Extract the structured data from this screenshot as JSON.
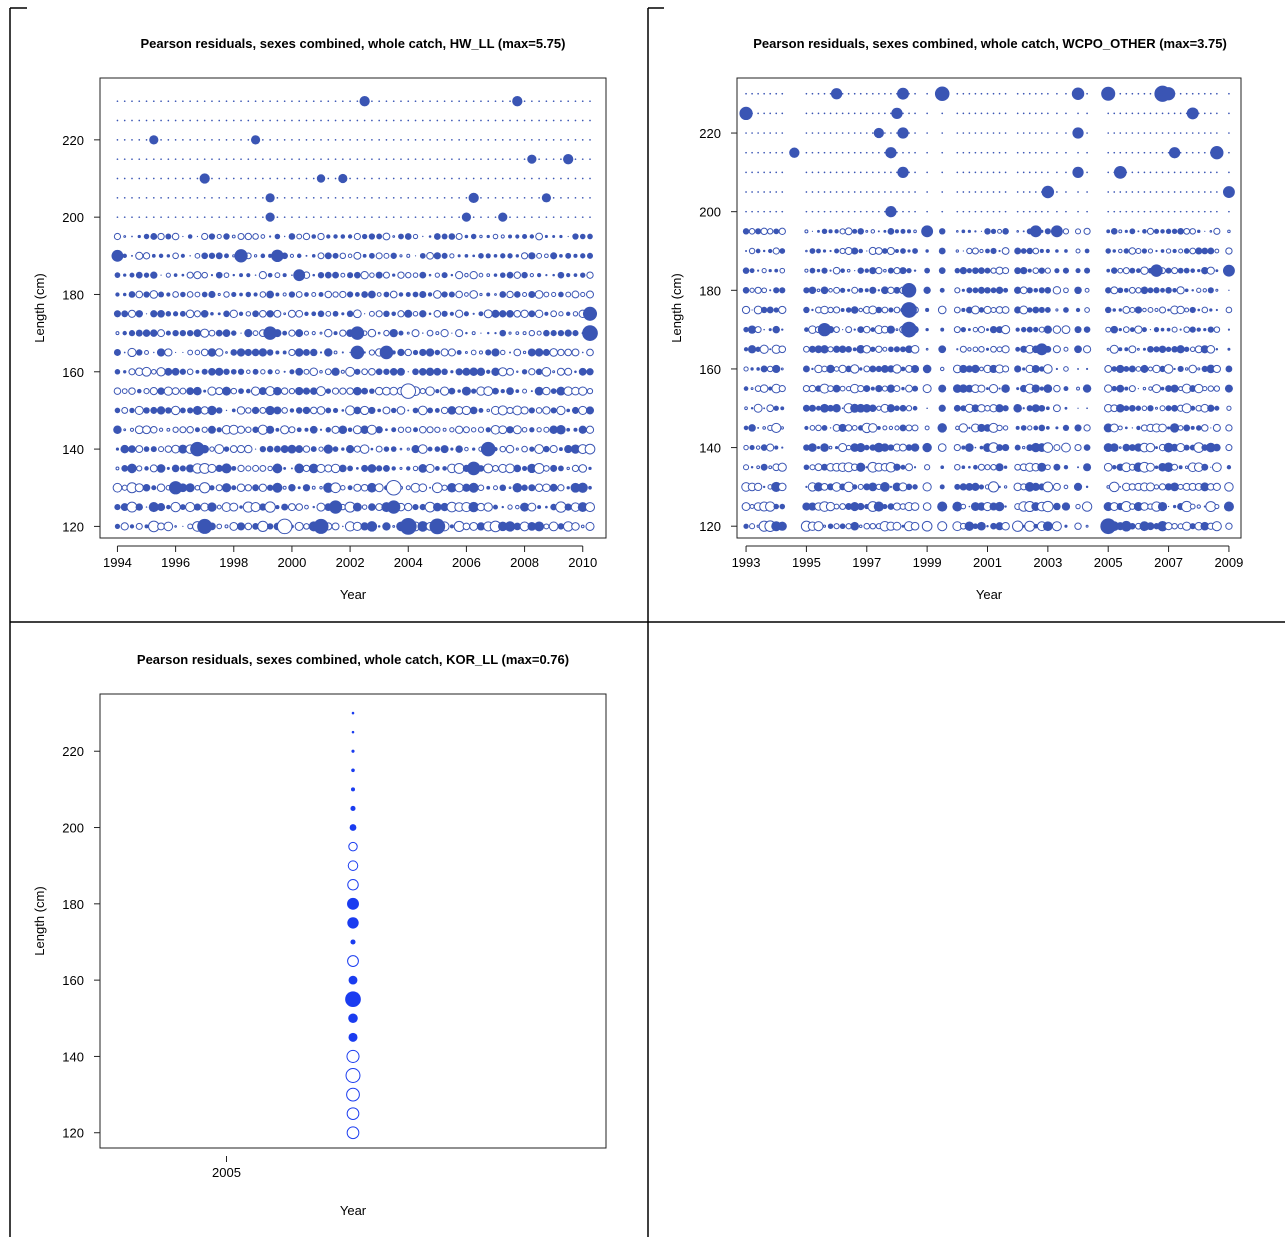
{
  "chart_data": [
    {
      "type": "scatter",
      "subtype": "bubble",
      "title": "Pearson residuals, sexes combined, whole catch, HW_LL (max=5.75)",
      "xlabel": "Year",
      "ylabel": "Length (cm)",
      "x_ticks": [
        "1994",
        "1996",
        "1998",
        "2000",
        "2002",
        "2004",
        "2006",
        "2008",
        "2010"
      ],
      "y_ticks": [
        "120",
        "140",
        "160",
        "180",
        "200",
        "220"
      ],
      "xlim": [
        1993.4,
        2010.8
      ],
      "ylim": [
        117,
        236
      ],
      "color": "#3a55b4",
      "legend": "none",
      "x_years": [
        1994.0,
        1994.25,
        1994.5,
        1994.75,
        1995.0,
        1995.25,
        1995.5,
        1995.75,
        1996.0,
        1996.25,
        1996.5,
        1996.75,
        1997.0,
        1997.25,
        1997.5,
        1997.75,
        1998.0,
        1998.25,
        1998.5,
        1998.75,
        1999.0,
        1999.25,
        1999.5,
        1999.75,
        2000.0,
        2000.25,
        2000.5,
        2000.75,
        2001.0,
        2001.25,
        2001.5,
        2001.75,
        2002.0,
        2002.25,
        2002.5,
        2002.75,
        2003.0,
        2003.25,
        2003.5,
        2003.75,
        2004.0,
        2004.25,
        2004.5,
        2004.75,
        2005.0,
        2005.25,
        2005.5,
        2005.75,
        2006.0,
        2006.25,
        2006.5,
        2006.75,
        2007.0,
        2007.25,
        2007.5,
        2007.75,
        2008.0,
        2008.25,
        2008.5,
        2008.75,
        2009.0,
        2009.25,
        2009.5,
        2009.75,
        2010.0,
        2010.25
      ],
      "length_bins": [
        120,
        125,
        130,
        135,
        140,
        145,
        150,
        155,
        160,
        165,
        170,
        175,
        180,
        185,
        190,
        195,
        200,
        205,
        210,
        215,
        220,
        225,
        230
      ],
      "highlighted_residuals": [
        {
          "x": 2002.5,
          "y": 230,
          "r": 1.5
        },
        {
          "x": 2007.75,
          "y": 230,
          "r": 1.5
        },
        {
          "x": 1995.25,
          "y": 220,
          "r": 1.2
        },
        {
          "x": 1998.75,
          "y": 220,
          "r": 1.2
        },
        {
          "x": 2008.25,
          "y": 215,
          "r": 1.2
        },
        {
          "x": 2009.5,
          "y": 215,
          "r": 1.5
        },
        {
          "x": 1997.0,
          "y": 210,
          "r": 1.5
        },
        {
          "x": 2001.0,
          "y": 210,
          "r": 1.0
        },
        {
          "x": 2001.75,
          "y": 210,
          "r": 1.2
        },
        {
          "x": 1999.25,
          "y": 205,
          "r": 1.2
        },
        {
          "x": 2006.25,
          "y": 205,
          "r": 1.5
        },
        {
          "x": 2008.75,
          "y": 205,
          "r": 1.2
        },
        {
          "x": 1999.25,
          "y": 200,
          "r": 1.2
        },
        {
          "x": 2006.0,
          "y": 200,
          "r": 1.2
        },
        {
          "x": 2007.25,
          "y": 200,
          "r": 1.2
        },
        {
          "x": 1994.0,
          "y": 190,
          "r": 2.0
        },
        {
          "x": 1998.25,
          "y": 190,
          "r": 2.5
        },
        {
          "x": 1999.5,
          "y": 190,
          "r": 2.2
        },
        {
          "x": 2000.25,
          "y": 185,
          "r": 2.0
        },
        {
          "x": 2010.25,
          "y": 175,
          "r": 2.8
        },
        {
          "x": 2010.25,
          "y": 170,
          "r": 3.5
        },
        {
          "x": 1999.25,
          "y": 170,
          "r": 2.6
        },
        {
          "x": 2002.25,
          "y": 170,
          "r": 2.6
        },
        {
          "x": 2002.25,
          "y": 165,
          "r": 2.6
        },
        {
          "x": 2003.25,
          "y": 165,
          "r": 2.6
        },
        {
          "x": 1996.75,
          "y": 140,
          "r": 3.0
        },
        {
          "x": 2006.75,
          "y": 140,
          "r": 3.0
        },
        {
          "x": 1996.0,
          "y": 130,
          "r": 2.5
        },
        {
          "x": 2003.5,
          "y": 130,
          "r": -3.0
        },
        {
          "x": 2003.5,
          "y": 125,
          "r": 2.5
        },
        {
          "x": 2001.5,
          "y": 125,
          "r": 2.5
        },
        {
          "x": 2006.25,
          "y": 135,
          "r": 2.6
        },
        {
          "x": 1997.0,
          "y": 120,
          "r": 3.2
        },
        {
          "x": 2001.0,
          "y": 120,
          "r": 3.2
        },
        {
          "x": 2004.0,
          "y": 120,
          "r": 4.0
        },
        {
          "x": 2005.0,
          "y": 120,
          "r": 3.5
        },
        {
          "x": 1999.75,
          "y": 120,
          "r": -3.0
        },
        {
          "x": 2004.0,
          "y": 155,
          "r": -3.0
        }
      ]
    },
    {
      "type": "scatter",
      "subtype": "bubble",
      "title": "Pearson residuals, sexes combined, whole catch, WCPO_OTHER (max=3.75)",
      "xlabel": "Year",
      "ylabel": "Length (cm)",
      "x_ticks": [
        "1993",
        "1995",
        "1997",
        "1999",
        "2001",
        "2003",
        "2005",
        "2007",
        "2009"
      ],
      "y_ticks": [
        "120",
        "140",
        "160",
        "180",
        "200",
        "220"
      ],
      "xlim": [
        1992.7,
        2009.4
      ],
      "ylim": [
        117,
        234
      ],
      "color": "#3a55b4",
      "legend": "none",
      "x_years": [
        1993.0,
        1993.2,
        1993.4,
        1993.6,
        1993.8,
        1994.0,
        1994.2,
        1995.0,
        1995.2,
        1995.4,
        1995.6,
        1995.8,
        1996.0,
        1996.2,
        1996.4,
        1996.6,
        1996.8,
        1997.0,
        1997.2,
        1997.4,
        1997.6,
        1997.8,
        1998.0,
        1998.2,
        1998.4,
        1998.6,
        1999.0,
        1999.5,
        2000.0,
        2000.2,
        2000.4,
        2000.6,
        2000.8,
        2001.0,
        2001.2,
        2001.4,
        2001.6,
        2002.0,
        2002.2,
        2002.4,
        2002.6,
        2002.8,
        2003.0,
        2003.3,
        2003.6,
        2004.0,
        2004.3,
        2005.0,
        2005.2,
        2005.4,
        2005.6,
        2005.8,
        2006.0,
        2006.2,
        2006.4,
        2006.6,
        2006.8,
        2007.0,
        2007.2,
        2007.4,
        2007.6,
        2007.8,
        2008.0,
        2008.2,
        2008.4,
        2008.6,
        2009.0
      ],
      "length_bins": [
        120,
        125,
        130,
        135,
        140,
        145,
        150,
        155,
        160,
        165,
        170,
        175,
        180,
        185,
        190,
        195,
        200,
        205,
        210,
        215,
        220,
        225,
        230
      ],
      "highlighted_residuals": [
        {
          "x": 1993.0,
          "y": 225,
          "r": 2.5
        },
        {
          "x": 1996.0,
          "y": 230,
          "r": 1.8
        },
        {
          "x": 1998.2,
          "y": 230,
          "r": 2.0
        },
        {
          "x": 1999.5,
          "y": 230,
          "r": 3.0
        },
        {
          "x": 2004.0,
          "y": 230,
          "r": 2.2
        },
        {
          "x": 2005.0,
          "y": 230,
          "r": 2.8
        },
        {
          "x": 2006.8,
          "y": 230,
          "r": 3.75
        },
        {
          "x": 2007.0,
          "y": 230,
          "r": 2.5
        },
        {
          "x": 1998.0,
          "y": 225,
          "r": 1.8
        },
        {
          "x": 2007.8,
          "y": 225,
          "r": 2.0
        },
        {
          "x": 1997.4,
          "y": 220,
          "r": 1.5
        },
        {
          "x": 1998.2,
          "y": 220,
          "r": 1.8
        },
        {
          "x": 2004.0,
          "y": 220,
          "r": 1.8
        },
        {
          "x": 1994.6,
          "y": 215,
          "r": 1.5
        },
        {
          "x": 1997.8,
          "y": 215,
          "r": 1.8
        },
        {
          "x": 2007.2,
          "y": 215,
          "r": 1.8
        },
        {
          "x": 2008.6,
          "y": 215,
          "r": 2.5
        },
        {
          "x": 1998.2,
          "y": 210,
          "r": 1.8
        },
        {
          "x": 2004.0,
          "y": 210,
          "r": 1.8
        },
        {
          "x": 2005.4,
          "y": 210,
          "r": 2.3
        },
        {
          "x": 2003.0,
          "y": 205,
          "r": 2.2
        },
        {
          "x": 2009.0,
          "y": 205,
          "r": 2.0
        },
        {
          "x": 1997.8,
          "y": 200,
          "r": 1.8
        },
        {
          "x": 1999.0,
          "y": 195,
          "r": 2.0
        },
        {
          "x": 2002.6,
          "y": 195,
          "r": 2.0
        },
        {
          "x": 2003.3,
          "y": 195,
          "r": 2.0
        },
        {
          "x": 2006.6,
          "y": 185,
          "r": 2.2
        },
        {
          "x": 2009.0,
          "y": 185,
          "r": 2.0
        },
        {
          "x": 1998.4,
          "y": 180,
          "r": 3.0
        },
        {
          "x": 1998.4,
          "y": 175,
          "r": 3.5
        },
        {
          "x": 1998.4,
          "y": 170,
          "r": 3.5
        },
        {
          "x": 1995.6,
          "y": 170,
          "r": 2.5
        },
        {
          "x": 2002.8,
          "y": 165,
          "r": 2.0
        },
        {
          "x": 2005.0,
          "y": 120,
          "r": 3.5
        }
      ]
    },
    {
      "type": "scatter",
      "subtype": "bubble",
      "title": "Pearson residuals, sexes combined, whole catch, KOR_LL (max=0.76)",
      "xlabel": "Year",
      "ylabel": "Length (cm)",
      "x_ticks": [
        "2005"
      ],
      "y_ticks": [
        "120",
        "140",
        "160",
        "180",
        "200",
        "220"
      ],
      "xlim": [
        2004.5,
        2006.5
      ],
      "ylim": [
        116,
        235
      ],
      "color": "#1a3cf0",
      "legend": "none",
      "series": [
        {
          "x": 2005.5,
          "points": [
            {
              "y": 120,
              "r": -0.42
            },
            {
              "y": 125,
              "r": -0.42
            },
            {
              "y": 130,
              "r": -0.5
            },
            {
              "y": 135,
              "r": -0.6
            },
            {
              "y": 140,
              "r": -0.45
            },
            {
              "y": 145,
              "r": 0.25
            },
            {
              "y": 150,
              "r": 0.28
            },
            {
              "y": 155,
              "r": 0.76
            },
            {
              "y": 160,
              "r": 0.24
            },
            {
              "y": 165,
              "r": -0.36
            },
            {
              "y": 170,
              "r": 0.08
            },
            {
              "y": 175,
              "r": 0.4
            },
            {
              "y": 180,
              "r": 0.44
            },
            {
              "y": 185,
              "r": -0.34
            },
            {
              "y": 190,
              "r": -0.28
            },
            {
              "y": 195,
              "r": -0.22
            },
            {
              "y": 200,
              "r": 0.14
            },
            {
              "y": 205,
              "r": 0.08
            },
            {
              "y": 210,
              "r": 0.05
            },
            {
              "y": 215,
              "r": 0.04
            },
            {
              "y": 220,
              "r": 0.03
            },
            {
              "y": 225,
              "r": 0.02
            },
            {
              "y": 230,
              "r": 0.02
            }
          ]
        }
      ]
    }
  ]
}
